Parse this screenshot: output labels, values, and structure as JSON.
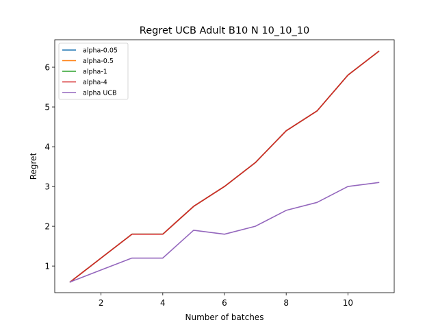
{
  "chart_data": {
    "type": "line",
    "title": "Regret UCB Adult B10 N 10_10_10",
    "xlabel": "Number of batches",
    "ylabel": "Regret",
    "xlim": [
      0.5,
      11.5
    ],
    "ylim": [
      0.33,
      6.69
    ],
    "xticks": [
      2,
      4,
      6,
      8,
      10
    ],
    "yticks": [
      1,
      2,
      3,
      4,
      5,
      6
    ],
    "grid": false,
    "legend_position": "upper left",
    "x": [
      1,
      2,
      3,
      4,
      5,
      6,
      7,
      8,
      9,
      10,
      11
    ],
    "series": [
      {
        "name": "alpha-0.05",
        "color": "#1f77b4",
        "values": [
          0.6,
          1.2,
          1.8,
          1.8,
          2.5,
          3.0,
          3.6,
          4.4,
          4.9,
          5.8,
          6.4
        ]
      },
      {
        "name": "alpha-0.5",
        "color": "#ff7f0e",
        "values": [
          0.6,
          1.2,
          1.8,
          1.8,
          2.5,
          3.0,
          3.6,
          4.4,
          4.9,
          5.8,
          6.4
        ]
      },
      {
        "name": "alpha-1",
        "color": "#2ca02c",
        "values": [
          0.6,
          1.2,
          1.8,
          1.8,
          2.5,
          3.0,
          3.6,
          4.4,
          4.9,
          5.8,
          6.4
        ]
      },
      {
        "name": "alpha-4",
        "color": "#d62728",
        "values": [
          0.6,
          1.2,
          1.8,
          1.8,
          2.5,
          3.0,
          3.6,
          4.4,
          4.9,
          5.8,
          6.4
        ]
      },
      {
        "name": "alpha UCB",
        "color": "#9467bd",
        "values": [
          0.6,
          0.9,
          1.2,
          1.2,
          1.9,
          1.8,
          2.0,
          2.4,
          2.6,
          3.0,
          3.1
        ]
      }
    ]
  }
}
